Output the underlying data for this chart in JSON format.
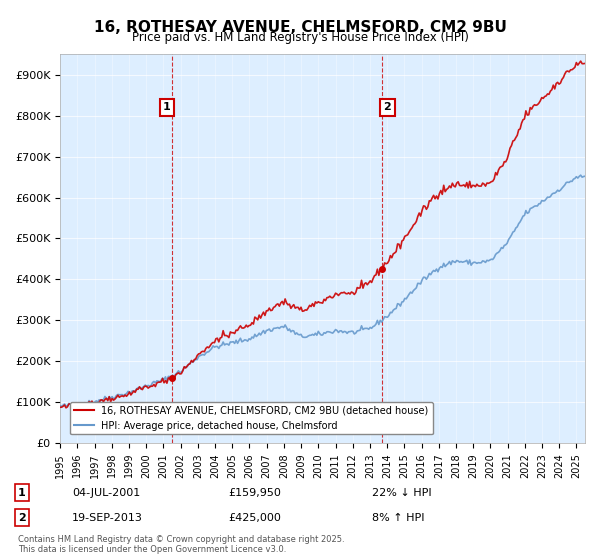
{
  "title": "16, ROTHESAY AVENUE, CHELMSFORD, CM2 9BU",
  "subtitle": "Price paid vs. HM Land Registry's House Price Index (HPI)",
  "ylabel_ticks": [
    "£0",
    "£100K",
    "£200K",
    "£300K",
    "£400K",
    "£500K",
    "£600K",
    "£700K",
    "£800K",
    "£900K"
  ],
  "ytick_values": [
    0,
    100000,
    200000,
    300000,
    400000,
    500000,
    600000,
    700000,
    800000,
    900000
  ],
  "ylim": [
    0,
    950000
  ],
  "xlim_start": 1995.0,
  "xlim_end": 2025.5,
  "red_color": "#cc0000",
  "blue_color": "#6699cc",
  "dashed_red": "#cc0000",
  "transaction1_x": 2001.5,
  "transaction1_y": 159950,
  "transaction1_label": "1",
  "transaction1_date": "04-JUL-2001",
  "transaction1_price": "£159,950",
  "transaction1_hpi": "22% ↓ HPI",
  "transaction2_x": 2013.72,
  "transaction2_y": 425000,
  "transaction2_label": "2",
  "transaction2_date": "19-SEP-2013",
  "transaction2_price": "£425,000",
  "transaction2_hpi": "8% ↑ HPI",
  "legend_line1": "16, ROTHESAY AVENUE, CHELMSFORD, CM2 9BU (detached house)",
  "legend_line2": "HPI: Average price, detached house, Chelmsford",
  "footnote": "Contains HM Land Registry data © Crown copyright and database right 2025.\nThis data is licensed under the Open Government Licence v3.0.",
  "background_color": "#ddeeff",
  "plot_bg": "#ddeeff",
  "fig_bg": "#ffffff"
}
